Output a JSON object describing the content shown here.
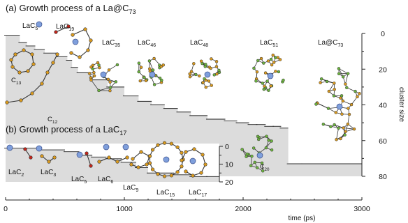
{
  "chart_data": [
    {
      "type": "area",
      "title": "(a) Growth process of a La@C",
      "title_sub": "73",
      "xlabel": "time (ps)",
      "ylabel": "cluster size",
      "xlim": [
        0,
        3000
      ],
      "ylim": [
        0,
        80
      ],
      "x_ticks": [
        "0",
        "1000",
        "2000",
        "3000"
      ],
      "y_ticks": [
        "0",
        "20",
        "40",
        "60",
        "80"
      ],
      "series": [
        {
          "x": [
            0,
            120,
            180,
            250,
            330,
            440,
            520,
            560,
            610,
            720,
            860,
            1000,
            1120,
            1230,
            1340,
            1450,
            1560,
            1700,
            1850,
            1950,
            2050,
            2120,
            2190,
            2260,
            2320,
            2380,
            2500,
            3000
          ],
          "y": [
            1,
            5,
            7,
            9,
            11,
            13,
            15,
            19,
            22,
            26,
            30,
            35,
            38,
            40,
            42,
            44,
            46,
            48,
            49,
            50,
            51,
            51,
            52,
            52,
            53,
            73,
            73,
            73
          ]
        }
      ],
      "annotations": [
        {
          "base": "LaC",
          "sub": "5"
        },
        {
          "base": "LaC",
          "sub": "19"
        },
        {
          "base": "LaC",
          "sub": "35"
        },
        {
          "base": "LaC",
          "sub": "46"
        },
        {
          "base": "LaC",
          "sub": "48"
        },
        {
          "base": "LaC",
          "sub": "51"
        },
        {
          "base": "La@C",
          "sub": "73"
        },
        {
          "base": "C",
          "sub": "13"
        },
        {
          "base": "C",
          "sub": "12"
        },
        {
          "base": "C",
          "sub": "20"
        }
      ]
    },
    {
      "type": "area",
      "title": "(b) Growth process of a LaC",
      "title_sub": "17",
      "ylim": [
        0,
        20
      ],
      "y_ticks": [
        "0",
        "10",
        "20"
      ],
      "series": [
        {
          "x": [
            0,
            280,
            500,
            620,
            730,
            850,
            980,
            1100,
            1200,
            1300,
            1420,
            1560,
            1700,
            1800
          ],
          "y": [
            1,
            2,
            3,
            5,
            6,
            7,
            9,
            12,
            15,
            15,
            16,
            17,
            17,
            17
          ]
        }
      ],
      "annotations": [
        {
          "base": "LaC",
          "sub": "2"
        },
        {
          "base": "LaC",
          "sub": "3"
        },
        {
          "base": "LaC",
          "sub": "5"
        },
        {
          "base": "LaC",
          "sub": "6"
        },
        {
          "base": "LaC",
          "sub": "9"
        },
        {
          "base": "LaC",
          "sub": "15"
        },
        {
          "base": "LaC",
          "sub": "17"
        }
      ]
    }
  ],
  "colors": {
    "shade": "#dcdcdc",
    "carbon": "#d99a1f",
    "carbon_green": "#6cb33e",
    "edge_red": "#c0261b",
    "lanthanum": "#7f9fdc"
  }
}
